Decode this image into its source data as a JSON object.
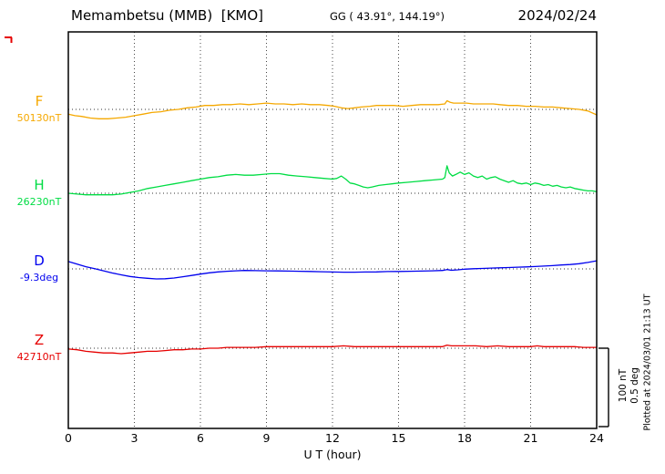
{
  "header": {
    "station_title": "Memambetsu (MMB)  [KMO]",
    "coordinates": "GG ( 43.91°, 144.19°)",
    "date": "2024/02/24"
  },
  "footer": {
    "xlabel": "U T (hour)"
  },
  "side_note": "Plotted at 2024/03/01 21:13 UT",
  "scale_bar": {
    "nT_label": "100 nT",
    "deg_label": "0.5 deg"
  },
  "chart_data": {
    "type": "line",
    "title": "Memambetsu (MMB) [KMO] magnetogram 2024/02/24",
    "xlabel": "U T (hour)",
    "x_range": [
      0,
      24
    ],
    "x_ticks": [
      0,
      3,
      6,
      9,
      12,
      15,
      18,
      21,
      24
    ],
    "grid": "dotted vertical every 3h, dotted horizontal baseline per trace",
    "legend_position": "left margin labels",
    "scale": {
      "nT_per_bar": 100,
      "deg_per_bar": 0.5
    },
    "series": [
      {
        "name": "F",
        "baseline_label": "50130nT",
        "baseline_value": 50130,
        "unit": "nT",
        "color": "#f5a800",
        "points": [
          [
            0,
            -6
          ],
          [
            0.3,
            -8
          ],
          [
            0.6,
            -9
          ],
          [
            1,
            -11
          ],
          [
            1.4,
            -12
          ],
          [
            1.8,
            -12
          ],
          [
            2.2,
            -11
          ],
          [
            2.6,
            -10
          ],
          [
            3,
            -8
          ],
          [
            3.4,
            -6
          ],
          [
            3.8,
            -4
          ],
          [
            4.2,
            -3
          ],
          [
            4.6,
            -1
          ],
          [
            5,
            0
          ],
          [
            5.4,
            2
          ],
          [
            5.8,
            3
          ],
          [
            6.2,
            5
          ],
          [
            6.6,
            5
          ],
          [
            7,
            6
          ],
          [
            7.4,
            6
          ],
          [
            7.8,
            7
          ],
          [
            8.2,
            6
          ],
          [
            8.6,
            7
          ],
          [
            9,
            8
          ],
          [
            9.4,
            7
          ],
          [
            9.8,
            7
          ],
          [
            10.2,
            6
          ],
          [
            10.6,
            7
          ],
          [
            11,
            6
          ],
          [
            11.4,
            6
          ],
          [
            11.8,
            5
          ],
          [
            12.1,
            4
          ],
          [
            12.4,
            2
          ],
          [
            12.7,
            1
          ],
          [
            13,
            2
          ],
          [
            13.3,
            3
          ],
          [
            13.7,
            4
          ],
          [
            14,
            5
          ],
          [
            14.4,
            5
          ],
          [
            14.8,
            5
          ],
          [
            15.2,
            4
          ],
          [
            15.6,
            5
          ],
          [
            16,
            6
          ],
          [
            16.4,
            6
          ],
          [
            16.8,
            6
          ],
          [
            17.1,
            7
          ],
          [
            17.2,
            11
          ],
          [
            17.35,
            9
          ],
          [
            17.5,
            8
          ],
          [
            17.8,
            8
          ],
          [
            18.1,
            8
          ],
          [
            18.4,
            7
          ],
          [
            18.7,
            7
          ],
          [
            19,
            7
          ],
          [
            19.3,
            7
          ],
          [
            19.6,
            6
          ],
          [
            20,
            5
          ],
          [
            20.4,
            5
          ],
          [
            20.8,
            4
          ],
          [
            21.2,
            4
          ],
          [
            21.6,
            3
          ],
          [
            22,
            3
          ],
          [
            22.4,
            2
          ],
          [
            22.8,
            1
          ],
          [
            23.2,
            0
          ],
          [
            23.6,
            -2
          ],
          [
            24,
            -7
          ]
        ]
      },
      {
        "name": "H",
        "baseline_label": "26230nT",
        "baseline_value": 26230,
        "unit": "nT",
        "color": "#00dd44",
        "points": [
          [
            0,
            0
          ],
          [
            0.4,
            -1
          ],
          [
            0.8,
            -2
          ],
          [
            1.2,
            -2
          ],
          [
            1.6,
            -2
          ],
          [
            2,
            -2
          ],
          [
            2.4,
            -1
          ],
          [
            2.8,
            1
          ],
          [
            3.2,
            3
          ],
          [
            3.6,
            6
          ],
          [
            4,
            8
          ],
          [
            4.4,
            10
          ],
          [
            4.8,
            12
          ],
          [
            5.2,
            14
          ],
          [
            5.6,
            16
          ],
          [
            6,
            18
          ],
          [
            6.4,
            20
          ],
          [
            6.8,
            21
          ],
          [
            7.2,
            23
          ],
          [
            7.6,
            24
          ],
          [
            8,
            23
          ],
          [
            8.4,
            23
          ],
          [
            8.8,
            24
          ],
          [
            9.2,
            25
          ],
          [
            9.6,
            25
          ],
          [
            10,
            23
          ],
          [
            10.4,
            22
          ],
          [
            10.8,
            21
          ],
          [
            11.2,
            20
          ],
          [
            11.6,
            19
          ],
          [
            12,
            18
          ],
          [
            12.2,
            19
          ],
          [
            12.4,
            22
          ],
          [
            12.6,
            18
          ],
          [
            12.8,
            13
          ],
          [
            13,
            12
          ],
          [
            13.2,
            10
          ],
          [
            13.4,
            8
          ],
          [
            13.6,
            7
          ],
          [
            13.8,
            8
          ],
          [
            14.1,
            10
          ],
          [
            14.4,
            11
          ],
          [
            14.7,
            12
          ],
          [
            15,
            13
          ],
          [
            15.4,
            14
          ],
          [
            15.8,
            15
          ],
          [
            16.2,
            16
          ],
          [
            16.6,
            17
          ],
          [
            17,
            18
          ],
          [
            17.1,
            20
          ],
          [
            17.2,
            35
          ],
          [
            17.3,
            26
          ],
          [
            17.45,
            22
          ],
          [
            17.6,
            24
          ],
          [
            17.8,
            27
          ],
          [
            18,
            24
          ],
          [
            18.2,
            26
          ],
          [
            18.4,
            22
          ],
          [
            18.6,
            20
          ],
          [
            18.8,
            22
          ],
          [
            19,
            18
          ],
          [
            19.2,
            20
          ],
          [
            19.4,
            21
          ],
          [
            19.6,
            18
          ],
          [
            19.8,
            16
          ],
          [
            20,
            14
          ],
          [
            20.2,
            16
          ],
          [
            20.4,
            13
          ],
          [
            20.6,
            12
          ],
          [
            20.8,
            13
          ],
          [
            21,
            11
          ],
          [
            21.2,
            13
          ],
          [
            21.4,
            12
          ],
          [
            21.6,
            10
          ],
          [
            21.8,
            11
          ],
          [
            22,
            9
          ],
          [
            22.2,
            10
          ],
          [
            22.4,
            8
          ],
          [
            22.6,
            7
          ],
          [
            22.8,
            8
          ],
          [
            23,
            6
          ],
          [
            23.2,
            5
          ],
          [
            23.4,
            4
          ],
          [
            23.6,
            3
          ],
          [
            23.8,
            3
          ],
          [
            24,
            2
          ]
        ]
      },
      {
        "name": "D",
        "baseline_label": "-9.3deg",
        "baseline_value": -9.3,
        "unit": "deg",
        "color": "#0000ee",
        "points": [
          [
            0,
            0.047
          ],
          [
            0.4,
            0.03
          ],
          [
            0.8,
            0.014
          ],
          [
            1.2,
            0.002
          ],
          [
            1.6,
            -0.012
          ],
          [
            2,
            -0.026
          ],
          [
            2.4,
            -0.038
          ],
          [
            2.8,
            -0.048
          ],
          [
            3.2,
            -0.055
          ],
          [
            3.6,
            -0.06
          ],
          [
            4,
            -0.064
          ],
          [
            4.4,
            -0.063
          ],
          [
            4.8,
            -0.058
          ],
          [
            5.2,
            -0.05
          ],
          [
            5.6,
            -0.042
          ],
          [
            6,
            -0.033
          ],
          [
            6.4,
            -0.025
          ],
          [
            6.8,
            -0.019
          ],
          [
            7.2,
            -0.015
          ],
          [
            7.6,
            -0.012
          ],
          [
            8,
            -0.01
          ],
          [
            8.5,
            -0.011
          ],
          [
            9,
            -0.012
          ],
          [
            9.5,
            -0.013
          ],
          [
            10,
            -0.014
          ],
          [
            10.5,
            -0.015
          ],
          [
            11,
            -0.016
          ],
          [
            11.5,
            -0.018
          ],
          [
            12,
            -0.02
          ],
          [
            12.5,
            -0.021
          ],
          [
            13,
            -0.021
          ],
          [
            13.5,
            -0.02
          ],
          [
            14,
            -0.019
          ],
          [
            14.5,
            -0.017
          ],
          [
            15,
            -0.016
          ],
          [
            15.5,
            -0.015
          ],
          [
            16,
            -0.014
          ],
          [
            16.5,
            -0.012
          ],
          [
            17,
            -0.01
          ],
          [
            17.2,
            -0.004
          ],
          [
            17.4,
            -0.009
          ],
          [
            17.7,
            -0.006
          ],
          [
            18,
            -0.002
          ],
          [
            18.4,
            0.001
          ],
          [
            18.8,
            0.003
          ],
          [
            19.2,
            0.005
          ],
          [
            19.6,
            0.007
          ],
          [
            20,
            0.009
          ],
          [
            20.4,
            0.011
          ],
          [
            20.8,
            0.013
          ],
          [
            21.2,
            0.015
          ],
          [
            21.6,
            0.018
          ],
          [
            22,
            0.021
          ],
          [
            22.4,
            0.025
          ],
          [
            22.8,
            0.028
          ],
          [
            23.2,
            0.033
          ],
          [
            23.6,
            0.041
          ],
          [
            24,
            0.052
          ]
        ]
      },
      {
        "name": "Z",
        "baseline_label": "42710nT",
        "baseline_value": 42710,
        "unit": "nT",
        "color": "#e60000",
        "points": [
          [
            0,
            -1
          ],
          [
            0.4,
            -2
          ],
          [
            0.8,
            -4
          ],
          [
            1.2,
            -5
          ],
          [
            1.6,
            -6
          ],
          [
            2,
            -6
          ],
          [
            2.4,
            -7
          ],
          [
            2.8,
            -6
          ],
          [
            3.2,
            -5
          ],
          [
            3.6,
            -4
          ],
          [
            4,
            -4
          ],
          [
            4.4,
            -3
          ],
          [
            4.8,
            -2
          ],
          [
            5.2,
            -2
          ],
          [
            5.6,
            -1
          ],
          [
            6,
            -1
          ],
          [
            6.4,
            0
          ],
          [
            6.8,
            0
          ],
          [
            7.2,
            1
          ],
          [
            7.6,
            1
          ],
          [
            8,
            1
          ],
          [
            8.5,
            1
          ],
          [
            9,
            2
          ],
          [
            9.5,
            2
          ],
          [
            10,
            2
          ],
          [
            10.5,
            2
          ],
          [
            11,
            2
          ],
          [
            11.5,
            2
          ],
          [
            12,
            2
          ],
          [
            12.5,
            3
          ],
          [
            13,
            2
          ],
          [
            13.5,
            2
          ],
          [
            14,
            2
          ],
          [
            14.5,
            2
          ],
          [
            15,
            2
          ],
          [
            15.5,
            2
          ],
          [
            16,
            2
          ],
          [
            16.5,
            2
          ],
          [
            17,
            2
          ],
          [
            17.2,
            4
          ],
          [
            17.4,
            3
          ],
          [
            17.7,
            3
          ],
          [
            18,
            3
          ],
          [
            18.5,
            3
          ],
          [
            19,
            2
          ],
          [
            19.5,
            3
          ],
          [
            20,
            2
          ],
          [
            20.5,
            2
          ],
          [
            21,
            2
          ],
          [
            21.3,
            3
          ],
          [
            21.6,
            2
          ],
          [
            22,
            2
          ],
          [
            22.5,
            2
          ],
          [
            23,
            2
          ],
          [
            23.4,
            1
          ],
          [
            23.7,
            1
          ],
          [
            24,
            1
          ]
        ]
      }
    ]
  }
}
